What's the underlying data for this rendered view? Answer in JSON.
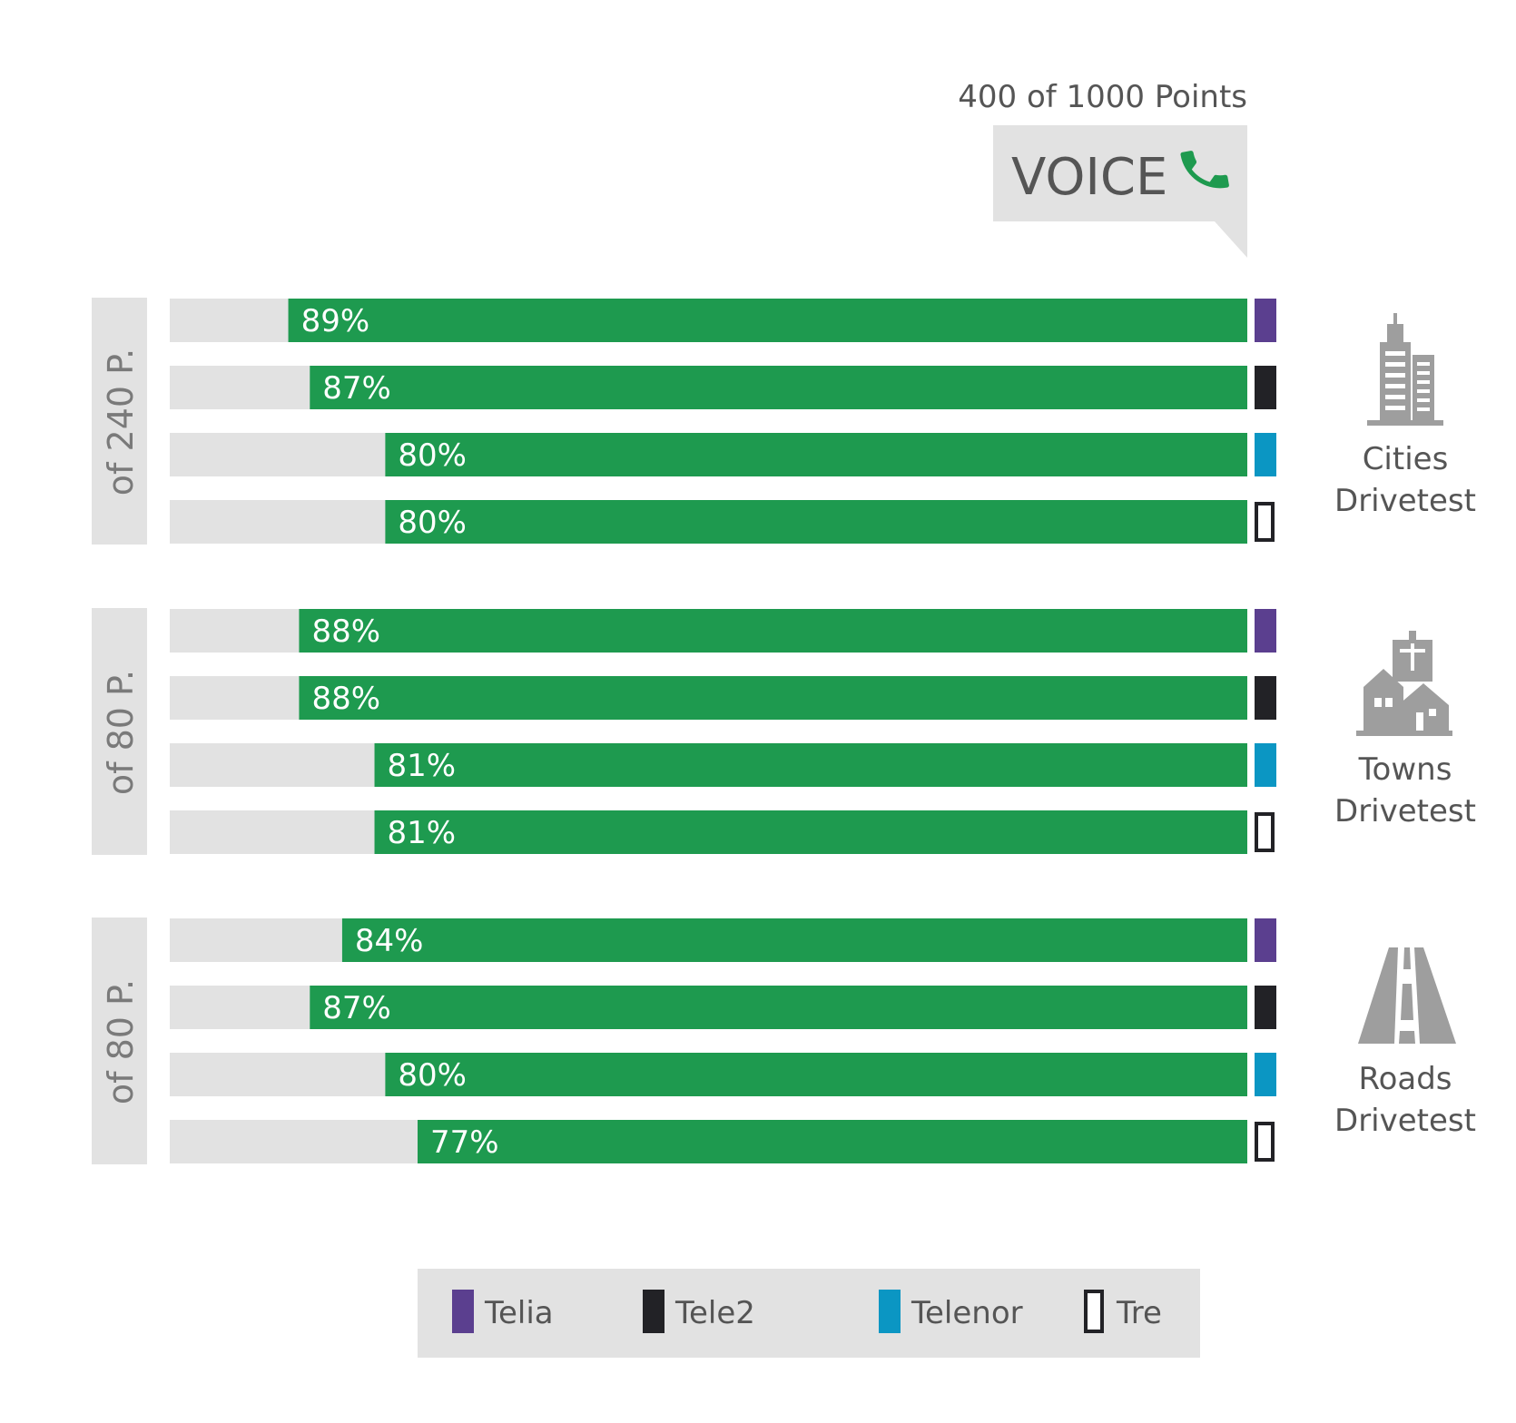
{
  "header": {
    "points_text": "400 of 1000 Points",
    "voice_label": "VOICE"
  },
  "chart_data": {
    "type": "bar",
    "orientation": "horizontal",
    "value_format": "percent",
    "xlim": [
      0,
      100
    ],
    "series": [
      {
        "name": "Telia",
        "color": "#5b3f8f",
        "style": "filled"
      },
      {
        "name": "Tele2",
        "color": "#222226",
        "style": "filled"
      },
      {
        "name": "Telenor",
        "color": "#0b96c3",
        "style": "filled"
      },
      {
        "name": "Tre",
        "color": "#222226",
        "style": "outline"
      }
    ],
    "groups": [
      {
        "points_label": "of 240 P.",
        "category": [
          "Cities",
          "Drivetest"
        ],
        "icon": "city-buildings-icon",
        "values": [
          89,
          87,
          80,
          80
        ]
      },
      {
        "points_label": "of 80 P.",
        "category": [
          "Towns",
          "Drivetest"
        ],
        "icon": "town-houses-icon",
        "values": [
          88,
          88,
          81,
          81
        ]
      },
      {
        "points_label": "of 80 P.",
        "category": [
          "Roads",
          "Drivetest"
        ],
        "icon": "road-icon",
        "values": [
          84,
          87,
          80,
          77
        ]
      }
    ],
    "bar_color": "#1e9a4f",
    "track_color": "#e2e2e2",
    "legend_position": "bottom"
  }
}
